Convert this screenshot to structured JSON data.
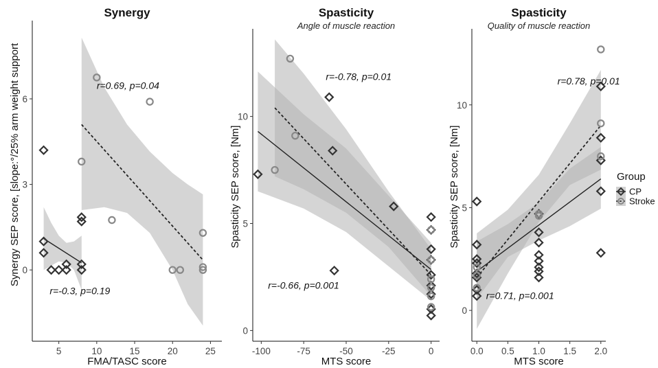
{
  "chart_data": [
    {
      "type": "scatter",
      "title": "Synergy",
      "subtitle": "",
      "xlabel": "FMA/TASC score",
      "ylabel": "Synergy SEP score, [slope:°/25% arm weight support",
      "xlim": [
        1.5,
        26.5
      ],
      "ylim": [
        -2.5,
        8.6
      ],
      "xticks": [
        5,
        10,
        15,
        20,
        25
      ],
      "yticks": [
        0,
        3,
        6
      ],
      "grid": false,
      "series": [
        {
          "name": "CP",
          "marker": "diamond",
          "points": [
            [
              3,
              4.2
            ],
            [
              3,
              1.0
            ],
            [
              3,
              0.6
            ],
            [
              4,
              0.0
            ],
            [
              5,
              0.0
            ],
            [
              6,
              0.0
            ],
            [
              6,
              0.2
            ],
            [
              8,
              1.85
            ],
            [
              8,
              1.7
            ],
            [
              8,
              0.2
            ],
            [
              8,
              0.0
            ]
          ],
          "fit": {
            "x": [
              3,
              8
            ],
            "y": [
              1.1,
              0.25
            ]
          },
          "band": {
            "x": [
              3,
              4,
              5,
              6,
              7,
              8
            ],
            "lower": [
              0.0,
              0.15,
              0.3,
              0.25,
              0.0,
              -0.7
            ],
            "upper": [
              2.2,
              1.65,
              1.2,
              0.95,
              1.0,
              1.2
            ]
          }
        },
        {
          "name": "Stroke",
          "marker": "circle",
          "points": [
            [
              8,
              3.8
            ],
            [
              10,
              6.75
            ],
            [
              12,
              1.75
            ],
            [
              17,
              5.9
            ],
            [
              20,
              0.0
            ],
            [
              21,
              0.0
            ],
            [
              24,
              1.3
            ],
            [
              24,
              0.1
            ],
            [
              24,
              0.0
            ]
          ],
          "fit": {
            "x": [
              8,
              24
            ],
            "y": [
              5.1,
              0.35
            ]
          },
          "band": {
            "x": [
              8,
              11,
              14,
              17,
              20,
              22,
              24
            ],
            "lower": [
              2.1,
              2.2,
              2.0,
              1.3,
              0.0,
              -1.2,
              -1.95
            ],
            "upper": [
              8.15,
              6.4,
              5.1,
              4.15,
              3.4,
              3.0,
              2.65
            ]
          }
        }
      ],
      "annotations": [
        {
          "text": "r=0.69, p=0.04",
          "x": 10,
          "y": 6.35
        },
        {
          "text": "r=-0.3, p=0.19",
          "x": 3.8,
          "y": -0.85
        }
      ]
    },
    {
      "type": "scatter",
      "title": "Spasticity",
      "subtitle": "Angle of muscle reaction",
      "xlabel": "MTS score",
      "ylabel": "Spasticity SEP score, [Nm]",
      "xlim": [
        -105,
        5
      ],
      "ylim": [
        -0.5,
        13.9
      ],
      "xticks": [
        -100,
        -75,
        -50,
        -25,
        0
      ],
      "yticks": [
        0,
        5,
        10
      ],
      "grid": false,
      "series": [
        {
          "name": "CP",
          "marker": "diamond",
          "points": [
            [
              -102,
              7.3
            ],
            [
              -60,
              10.9
            ],
            [
              -58,
              8.4
            ],
            [
              -57,
              2.8
            ],
            [
              -22,
              5.8
            ],
            [
              0,
              5.3
            ],
            [
              0,
              4.7
            ],
            [
              0,
              3.8
            ],
            [
              0,
              3.3
            ],
            [
              0,
              2.6
            ],
            [
              0,
              2.1
            ],
            [
              0,
              1.7
            ],
            [
              0,
              1.0
            ],
            [
              0,
              0.7
            ]
          ],
          "fit": {
            "x": [
              -102,
              0
            ],
            "y": [
              9.3,
              2.85
            ]
          },
          "band": {
            "x": [
              -102,
              -75,
              -50,
              -25,
              0
            ],
            "lower": [
              6.5,
              5.7,
              4.6,
              3.0,
              1.4
            ],
            "upper": [
              12.1,
              10.1,
              8.5,
              6.3,
              4.1
            ]
          }
        },
        {
          "name": "Stroke",
          "marker": "circle",
          "points": [
            [
              -92,
              7.5
            ],
            [
              -83,
              12.7
            ],
            [
              -80,
              9.1
            ],
            [
              0,
              4.7
            ],
            [
              0,
              3.3
            ],
            [
              0,
              2.4
            ],
            [
              0,
              2.0
            ],
            [
              0,
              1.6
            ],
            [
              0,
              1.1
            ]
          ],
          "fit": {
            "x": [
              -92,
              0
            ],
            "y": [
              10.4,
              2.6
            ]
          },
          "band": {
            "x": [
              -92,
              -75,
              -50,
              -25,
              0
            ],
            "lower": [
              7.2,
              6.6,
              5.5,
              3.9,
              1.6
            ],
            "upper": [
              13.6,
              12.0,
              9.4,
              6.5,
              3.8
            ]
          }
        }
      ],
      "annotations": [
        {
          "text": "r=-0.78, p=0.01",
          "x": -62,
          "y": 11.7
        },
        {
          "text": "r=-0.66, p=0.001",
          "x": -96,
          "y": 1.95
        }
      ]
    },
    {
      "type": "scatter",
      "title": "Spasticity",
      "subtitle": "Quality of muscle reaction",
      "xlabel": "MTS score",
      "ylabel": "Spasticity SEP score, [Nm]",
      "xlim": [
        -0.08,
        2.08
      ],
      "ylim": [
        -1.5,
        13.5
      ],
      "xticks": [
        0.0,
        0.5,
        1.0,
        1.5,
        2.0
      ],
      "yticks": [
        0,
        5,
        10
      ],
      "grid": false,
      "series": [
        {
          "name": "CP",
          "marker": "diamond",
          "points": [
            [
              0,
              5.3
            ],
            [
              0,
              3.2
            ],
            [
              0,
              2.5
            ],
            [
              0,
              2.3
            ],
            [
              0,
              1.8
            ],
            [
              0,
              1.6
            ],
            [
              0,
              1.0
            ],
            [
              0,
              0.7
            ],
            [
              1,
              4.7
            ],
            [
              1,
              3.8
            ],
            [
              1,
              3.3
            ],
            [
              1,
              2.7
            ],
            [
              1,
              2.4
            ],
            [
              1,
              2.1
            ],
            [
              1,
              1.9
            ],
            [
              1,
              1.6
            ],
            [
              2,
              10.9
            ],
            [
              2,
              8.4
            ],
            [
              2,
              7.3
            ],
            [
              2,
              5.8
            ],
            [
              2,
              2.8
            ]
          ],
          "fit": {
            "x": [
              0,
              2
            ],
            "y": [
              1.9,
              6.4
            ]
          },
          "band": {
            "x": [
              0,
              0.5,
              1,
              1.5,
              2
            ],
            "lower": [
              0.55,
              2.6,
              3.4,
              4.1,
              4.95
            ],
            "upper": [
              3.35,
              4.2,
              5.25,
              6.9,
              7.95
            ]
          }
        },
        {
          "name": "Stroke",
          "marker": "circle",
          "points": [
            [
              0,
              2.1
            ],
            [
              0,
              1.7
            ],
            [
              0,
              1.1
            ],
            [
              1,
              4.7
            ],
            [
              1,
              4.6
            ],
            [
              2,
              12.7
            ],
            [
              2,
              9.1
            ],
            [
              2,
              7.5
            ]
          ],
          "fit": {
            "x": [
              0,
              2
            ],
            "y": [
              1.6,
              9.0
            ]
          },
          "band": {
            "x": [
              0,
              0.5,
              1,
              1.5,
              2
            ],
            "lower": [
              -0.9,
              1.8,
              4.3,
              6.1,
              6.85
            ],
            "upper": [
              3.75,
              4.9,
              6.6,
              9.1,
              11.7
            ]
          }
        }
      ],
      "annotations": [
        {
          "text": "r=0.78, p=0.01",
          "x": 1.3,
          "y": 11.0
        },
        {
          "text": "r=0.71, p=0.001",
          "x": 0.15,
          "y": 0.55
        }
      ]
    }
  ],
  "legend": {
    "title": "Group",
    "placement": "right",
    "items": [
      {
        "label": "CP",
        "marker": "diamond"
      },
      {
        "label": "Stroke",
        "marker": "circle"
      }
    ]
  },
  "colors": {
    "CP": "#333333",
    "Stroke": "#888888",
    "band": "#b3b3b3"
  }
}
